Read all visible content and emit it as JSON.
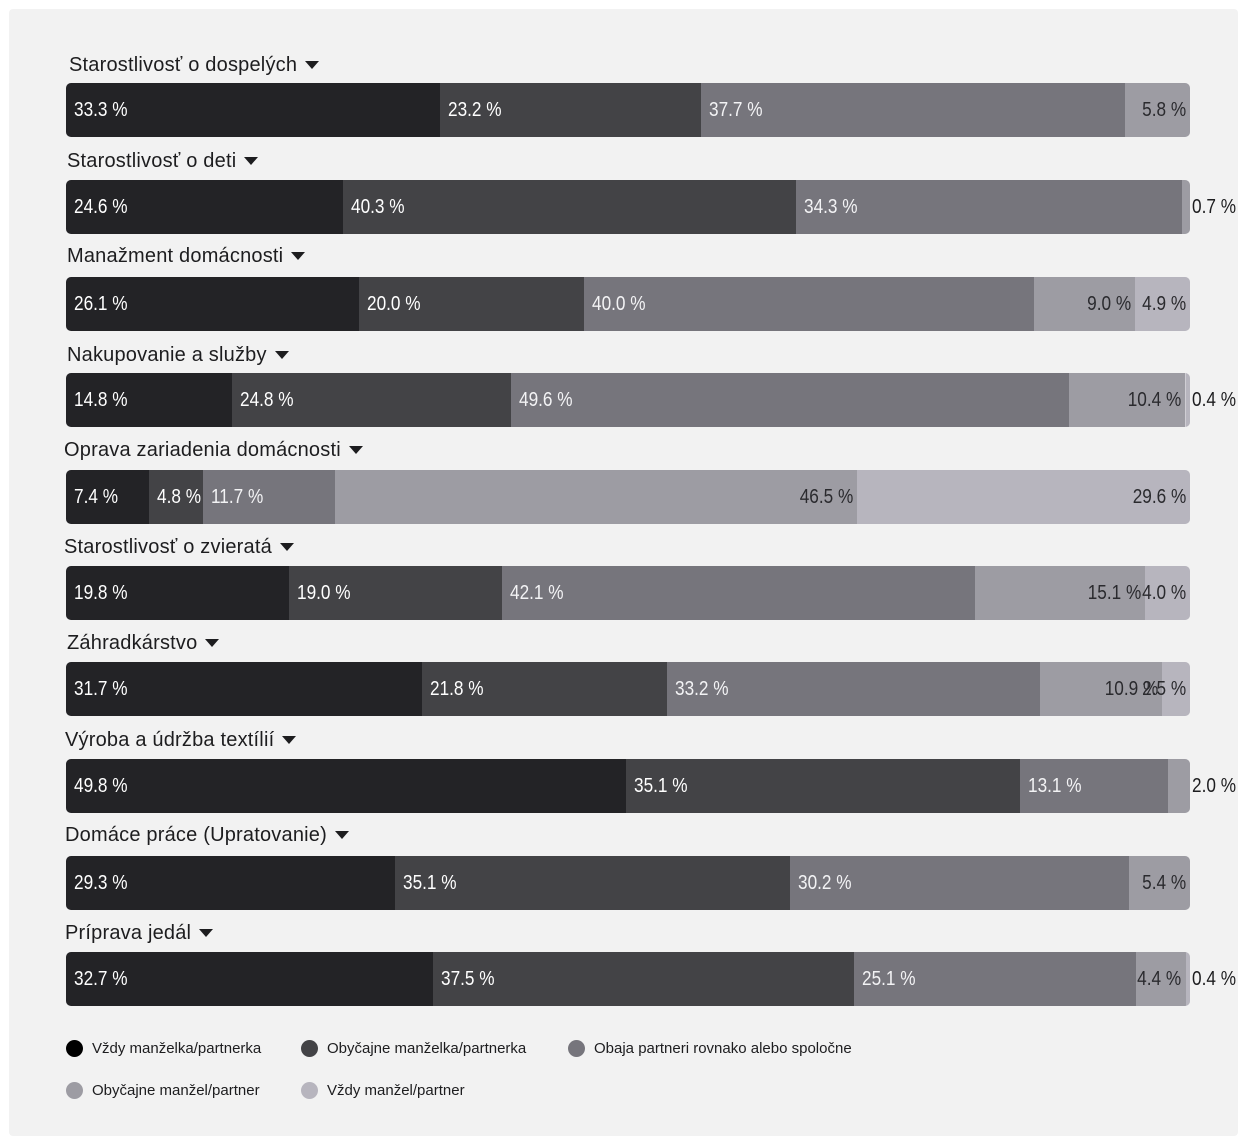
{
  "chart_data": {
    "type": "bar",
    "orientation": "horizontal",
    "stacked": true,
    "percent_suffix": " %",
    "categories": [
      "Starostlivosť o dospelých",
      "Starostlivosť o deti",
      "Manažment domácnosti",
      "Nakupovanie a služby",
      "Oprava zariadenia domácnosti",
      "Starostlivosť o zvieratá",
      "Záhradkárstvo",
      "Výroba a údržba textílií",
      "Domáce práce (Upratovanie)",
      "Príprava jedál"
    ],
    "series": [
      {
        "name": "Vždy manželka/partnerka",
        "color": "#232326",
        "values": [
          33.3,
          24.6,
          26.1,
          14.8,
          7.4,
          19.8,
          31.7,
          49.8,
          29.3,
          32.7
        ]
      },
      {
        "name": "Obyčajne manželka/partnerka",
        "color": "#434346",
        "values": [
          23.2,
          40.3,
          20.0,
          24.8,
          4.8,
          19.0,
          21.8,
          35.1,
          35.1,
          37.5
        ]
      },
      {
        "name": "Obaja partneri rovnako alebo spoločne",
        "color": "#76757c",
        "values": [
          37.7,
          34.3,
          40.0,
          49.6,
          11.7,
          42.1,
          33.2,
          13.1,
          30.2,
          25.1
        ]
      },
      {
        "name": "Obyčajne manžel/partner",
        "color": "#9d9ca3",
        "values": [
          5.8,
          0.7,
          9.0,
          10.4,
          46.5,
          15.1,
          10.9,
          2.0,
          5.4,
          4.4
        ]
      },
      {
        "name": "Vždy manžel/partner",
        "color": "#b7b5be",
        "values": [
          null,
          null,
          4.9,
          0.4,
          29.6,
          4.0,
          2.5,
          null,
          null,
          0.4
        ]
      }
    ],
    "xlim": [
      0,
      100
    ],
    "legend": "bottom-left"
  }
}
